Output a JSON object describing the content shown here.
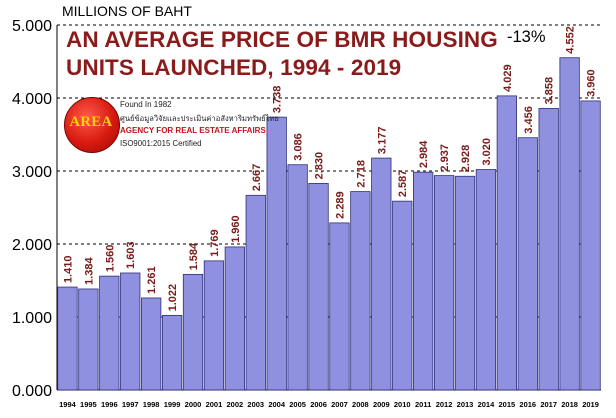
{
  "units_label": "MILLIONS OF BAHT",
  "title_line1": "AN AVERAGE PRICE OF BMR HOUSING",
  "title_line2": "UNITS LAUNCHED, 1994 - 2019",
  "change_label": "-13%",
  "logo": {
    "mark": "AREA",
    "line1": "Found In 1982",
    "line2": "ศูนย์ข้อมูลวิจัยและประเมินค่าอสังหาริมทรัพย์ไทย",
    "line3": "AGENCY FOR REAL ESTATE AFFAIRS",
    "line4": "ISO9001:2015 Certified"
  },
  "colors": {
    "bar": "#8f90e0",
    "bar_edge": "#2e2f78",
    "value_label": "#7b1a1a",
    "title": "#8b1a1a",
    "grid": "#000000"
  },
  "chart_data": {
    "type": "bar",
    "title": "AN AVERAGE PRICE OF BMR HOUSING UNITS LAUNCHED, 1994 - 2019",
    "ylabel": "MILLIONS OF BAHT",
    "categories": [
      "1994",
      "1995",
      "1996",
      "1997",
      "1998",
      "1999",
      "2000",
      "2001",
      "2002",
      "2003",
      "2004",
      "2005",
      "2006",
      "2007",
      "2008",
      "2009",
      "2010",
      "2011",
      "2012",
      "2013",
      "2014",
      "2015",
      "2016",
      "2017",
      "2018",
      "2019"
    ],
    "values": [
      1.41,
      1.384,
      1.56,
      1.603,
      1.261,
      1.022,
      1.584,
      1.769,
      1.96,
      2.667,
      3.738,
      3.086,
      2.83,
      2.289,
      2.718,
      3.177,
      2.587,
      2.984,
      2.937,
      2.928,
      3.02,
      4.029,
      3.456,
      3.858,
      4.552,
      3.96
    ],
    "value_labels": [
      "1.410",
      "1.384",
      "1.560",
      "1.603",
      "1.261",
      "1.022",
      "1.584",
      "1.769",
      "1.960",
      "2.667",
      "3.738",
      "3.086",
      "2.830",
      "2.289",
      "2.718",
      "3.177",
      "2.587",
      "2.984",
      "2.937",
      "2.928",
      "3.020",
      "4.029",
      "3.456",
      "3.858",
      "4.552",
      "3.960"
    ],
    "ylim": [
      0,
      5
    ],
    "yticks": [
      0,
      1,
      2,
      3,
      4,
      5
    ],
    "ytick_labels": [
      "0.000",
      "1.000",
      "2.000",
      "3.000",
      "4.000",
      "5.000"
    ],
    "grid": true,
    "annotations": [
      "-13%"
    ]
  }
}
